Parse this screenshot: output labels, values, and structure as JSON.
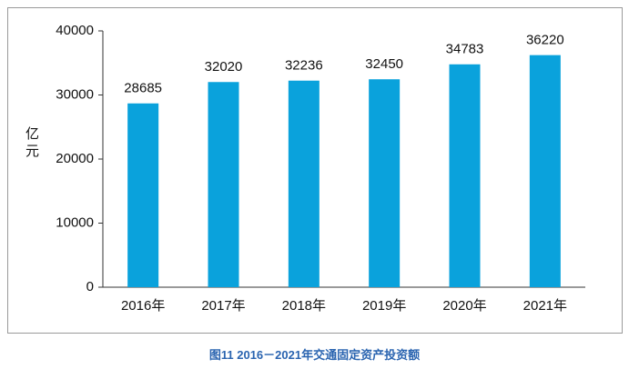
{
  "chart_data": {
    "type": "bar",
    "caption": "图11  2016－2021年交通固定资产投资额",
    "y_label": "亿元",
    "categories": [
      "2016年",
      "2017年",
      "2018年",
      "2019年",
      "2020年",
      "2021年"
    ],
    "values": [
      28685,
      32020,
      32236,
      32450,
      34783,
      36220
    ],
    "color": "#0aa2dc",
    "ylim": [
      0,
      40000
    ],
    "yticks": [
      0,
      10000,
      20000,
      30000,
      40000
    ],
    "grid": false
  }
}
